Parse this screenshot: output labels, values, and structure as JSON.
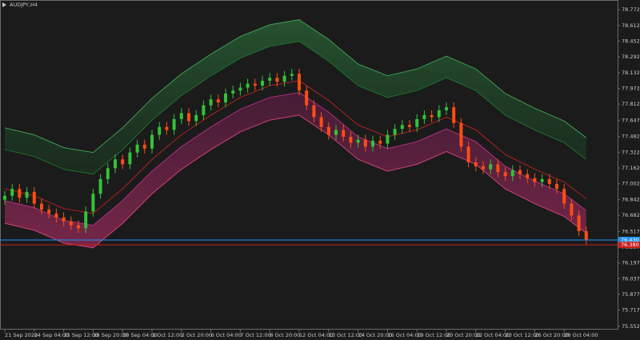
{
  "chart_data": {
    "type": "candlestick",
    "title": "AUDJPY,H4",
    "categories": [
      "21 Sep 2020",
      null,
      null,
      null,
      "24 Sep 04:00",
      null,
      null,
      null,
      "25 Sep 12:00",
      null,
      null,
      null,
      "28 Sep 20:00",
      null,
      null,
      null,
      "30 Sep 04:00",
      null,
      null,
      null,
      "1 Oct 12:00",
      null,
      null,
      null,
      "2 Oct 20:00",
      null,
      null,
      null,
      "6 Oct 04:00",
      null,
      null,
      null,
      "7 Oct 12:00",
      null,
      null,
      null,
      "8 Oct 20:00",
      null,
      null,
      null,
      "12 Oct 04:00",
      null,
      null,
      null,
      "13 Oct 12:00",
      null,
      null,
      null,
      "14 Oct 20:00",
      null,
      null,
      null,
      "16 Oct 04:00",
      null,
      null,
      null,
      "19 Oct 12:00",
      null,
      null,
      null,
      "20 Oct 20:00",
      null,
      null,
      null,
      "22 Oct 04:00",
      null,
      null,
      null,
      "23 Oct 12:00",
      null,
      null,
      null,
      "26 Oct 20:00",
      null,
      null,
      null,
      "28 Oct 04:00",
      null,
      null,
      null
    ],
    "open": [
      76.84,
      76.88,
      76.95,
      76.86,
      76.92,
      76.8,
      76.74,
      76.7,
      76.66,
      76.62,
      76.58,
      76.55,
      76.72,
      76.9,
      77.05,
      77.16,
      77.25,
      77.2,
      77.32,
      77.4,
      77.36,
      77.5,
      77.58,
      77.55,
      77.66,
      77.72,
      77.64,
      77.7,
      77.8,
      77.86,
      77.83,
      77.92,
      77.95,
      77.98,
      78.02,
      78.0,
      78.05,
      78.08,
      78.04,
      78.1,
      78.12,
      77.95,
      77.8,
      77.68,
      77.58,
      77.5,
      77.55,
      77.48,
      77.42,
      77.45,
      77.38,
      77.44,
      77.41,
      77.5,
      77.56,
      77.6,
      77.58,
      77.66,
      77.7,
      77.68,
      77.75,
      77.78,
      77.62,
      77.38,
      77.22,
      77.18,
      77.15,
      77.2,
      77.12,
      77.08,
      77.14,
      77.1,
      77.06,
      77.02,
      77.05,
      77.0,
      76.95,
      76.8,
      76.68,
      76.52
    ],
    "high": [
      76.93,
      77.0,
      77.0,
      76.97,
      76.97,
      76.85,
      76.79,
      76.75,
      76.71,
      76.67,
      76.63,
      76.77,
      76.95,
      77.1,
      77.21,
      77.3,
      77.3,
      77.37,
      77.45,
      77.45,
      77.55,
      77.63,
      77.63,
      77.71,
      77.77,
      77.77,
      77.75,
      77.85,
      77.91,
      77.91,
      77.97,
      78.0,
      78.03,
      78.07,
      78.07,
      78.1,
      78.13,
      78.13,
      78.15,
      78.17,
      78.17,
      78.0,
      77.85,
      77.73,
      77.63,
      77.6,
      77.6,
      77.53,
      77.5,
      77.5,
      77.49,
      77.49,
      77.55,
      77.61,
      77.65,
      77.65,
      77.71,
      77.75,
      77.75,
      77.8,
      77.83,
      77.83,
      77.67,
      77.43,
      77.27,
      77.23,
      77.25,
      77.25,
      77.17,
      77.19,
      77.19,
      77.15,
      77.11,
      77.1,
      77.1,
      77.05,
      77.0,
      76.85,
      76.73,
      76.57
    ],
    "low": [
      76.79,
      76.83,
      76.81,
      76.81,
      76.75,
      76.69,
      76.65,
      76.61,
      76.57,
      76.53,
      76.5,
      76.5,
      76.67,
      76.85,
      77.0,
      77.11,
      77.15,
      77.15,
      77.27,
      77.31,
      77.31,
      77.45,
      77.5,
      77.5,
      77.61,
      77.59,
      77.59,
      77.65,
      77.75,
      77.78,
      77.78,
      77.87,
      77.9,
      77.93,
      77.95,
      77.95,
      78.0,
      77.99,
      77.99,
      78.05,
      77.9,
      77.75,
      77.63,
      77.53,
      77.45,
      77.45,
      77.43,
      77.37,
      77.37,
      77.33,
      77.33,
      77.36,
      77.36,
      77.45,
      77.51,
      77.53,
      77.53,
      77.61,
      77.63,
      77.63,
      77.7,
      77.57,
      77.33,
      77.17,
      77.13,
      77.1,
      77.1,
      77.07,
      77.03,
      77.03,
      77.05,
      77.01,
      76.97,
      76.97,
      76.95,
      76.9,
      76.75,
      76.63,
      76.47,
      76.38
    ],
    "close": [
      76.88,
      76.95,
      76.86,
      76.92,
      76.8,
      76.74,
      76.7,
      76.66,
      76.62,
      76.58,
      76.55,
      76.72,
      76.9,
      77.05,
      77.16,
      77.25,
      77.2,
      77.32,
      77.4,
      77.36,
      77.5,
      77.58,
      77.55,
      77.66,
      77.72,
      77.64,
      77.7,
      77.8,
      77.86,
      77.83,
      77.92,
      77.95,
      77.98,
      78.02,
      78.0,
      78.05,
      78.08,
      78.04,
      78.1,
      78.12,
      77.95,
      77.8,
      77.68,
      77.58,
      77.5,
      77.55,
      77.48,
      77.42,
      77.45,
      77.38,
      77.44,
      77.41,
      77.5,
      77.56,
      77.6,
      77.58,
      77.66,
      77.7,
      77.68,
      77.75,
      77.78,
      77.62,
      77.38,
      77.22,
      77.18,
      77.15,
      77.2,
      77.12,
      77.08,
      77.14,
      77.1,
      77.06,
      77.02,
      77.05,
      77.0,
      76.95,
      76.8,
      76.68,
      76.52,
      76.43
    ],
    "up_color": "#33c23a",
    "down_color": "#ff4d14",
    "x": [
      0,
      4,
      8,
      12,
      16,
      20,
      24,
      28,
      32,
      36,
      40,
      44,
      48,
      52,
      56,
      60,
      64,
      68,
      72,
      76,
      79
    ],
    "series": [
      {
        "color": "#3f9a52",
        "values": [
          77.57,
          77.5,
          77.37,
          77.32,
          77.57,
          77.87,
          78.12,
          78.32,
          78.5,
          78.62,
          78.67,
          78.47,
          78.22,
          78.1,
          78.17,
          78.3,
          78.17,
          77.92,
          77.77,
          77.64,
          77.47
        ]
      },
      {
        "color": "#1f6e30",
        "values": [
          77.35,
          77.28,
          77.15,
          77.1,
          77.35,
          77.65,
          77.9,
          78.1,
          78.28,
          78.4,
          78.45,
          78.25,
          78.0,
          77.88,
          77.95,
          78.08,
          77.95,
          77.7,
          77.55,
          77.42,
          77.25
        ]
      },
      {
        "color": "#b0307e",
        "values": [
          76.83,
          76.76,
          76.63,
          76.58,
          76.83,
          77.13,
          77.38,
          77.58,
          77.76,
          77.88,
          77.93,
          77.73,
          77.48,
          77.36,
          77.43,
          77.56,
          77.43,
          77.18,
          77.03,
          76.9,
          76.73
        ]
      },
      {
        "color": "#d0407a",
        "values": [
          76.6,
          76.53,
          76.4,
          76.35,
          76.6,
          76.9,
          77.15,
          77.35,
          77.53,
          77.65,
          77.7,
          77.5,
          77.25,
          77.13,
          77.2,
          77.33,
          77.2,
          76.95,
          76.8,
          76.67,
          76.5
        ]
      },
      {
        "color": "#b22222",
        "values": [
          76.95,
          76.88,
          76.75,
          76.7,
          76.95,
          77.25,
          77.5,
          77.7,
          77.88,
          78.0,
          78.05,
          77.85,
          77.6,
          77.48,
          77.55,
          77.68,
          77.55,
          77.3,
          77.15,
          77.02,
          76.85
        ]
      }
    ],
    "price_lines": [
      {
        "value": 76.43,
        "label": "76.430",
        "color": "#1e90ff"
      },
      {
        "value": 76.38,
        "label": "76.380",
        "color": "#c81e1e"
      }
    ],
    "ylim": [
      75.519,
      78.871
    ],
    "yticks": [
      78.772,
      78.612,
      78.452,
      78.292,
      78.132,
      77.972,
      77.812,
      77.647,
      77.482,
      77.322,
      77.162,
      77.002,
      76.842,
      76.682,
      76.517,
      76.357,
      76.197,
      76.037,
      75.877,
      75.717,
      75.552
    ]
  }
}
